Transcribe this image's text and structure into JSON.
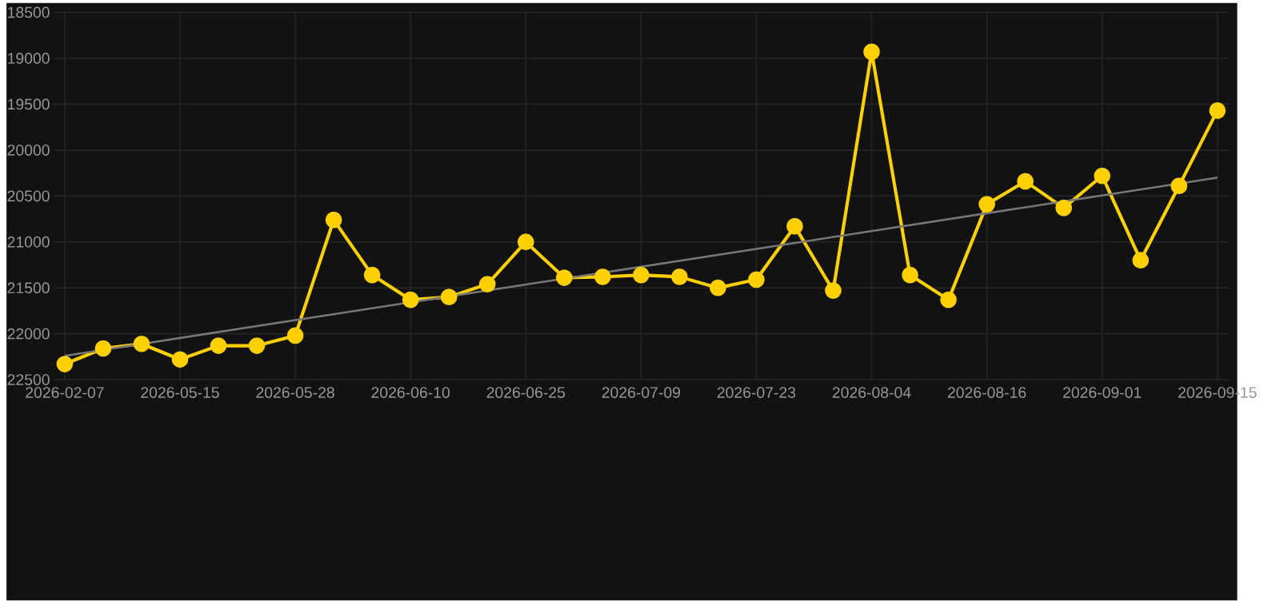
{
  "chart_data": {
    "type": "line",
    "categories": [
      "2026-02-07",
      null,
      null,
      "2026-05-15",
      null,
      null,
      "2026-05-28",
      null,
      null,
      "2026-06-10",
      null,
      null,
      "2026-06-25",
      null,
      null,
      "2026-07-09",
      null,
      null,
      "2026-07-23",
      null,
      null,
      "2026-08-04",
      null,
      null,
      "2026-08-16",
      null,
      null,
      "2026-09-01",
      null,
      null,
      "2026-09-15"
    ],
    "series": [
      {
        "color": "#ffd000",
        "marker": "circle",
        "values": [
          22330,
          22160,
          22110,
          22280,
          22130,
          22130,
          22020,
          20760,
          21360,
          21630,
          21600,
          21460,
          21000,
          21390,
          21380,
          21360,
          21380,
          21500,
          21410,
          20830,
          21530,
          18930,
          21360,
          21630,
          20590,
          20340,
          20630,
          20280,
          21200,
          20390,
          19570
        ]
      },
      {
        "color": "#777777",
        "marker": "none",
        "values": [
          22240,
          null,
          null,
          null,
          null,
          null,
          null,
          null,
          null,
          null,
          null,
          null,
          null,
          null,
          null,
          null,
          null,
          null,
          null,
          null,
          null,
          null,
          null,
          null,
          null,
          null,
          null,
          null,
          null,
          null,
          20300
        ]
      }
    ],
    "ylim": [
      22500,
      18500
    ],
    "yticks": [
      18500,
      19000,
      19500,
      20000,
      20500,
      21000,
      21500,
      22000,
      22500
    ],
    "grid": true
  }
}
